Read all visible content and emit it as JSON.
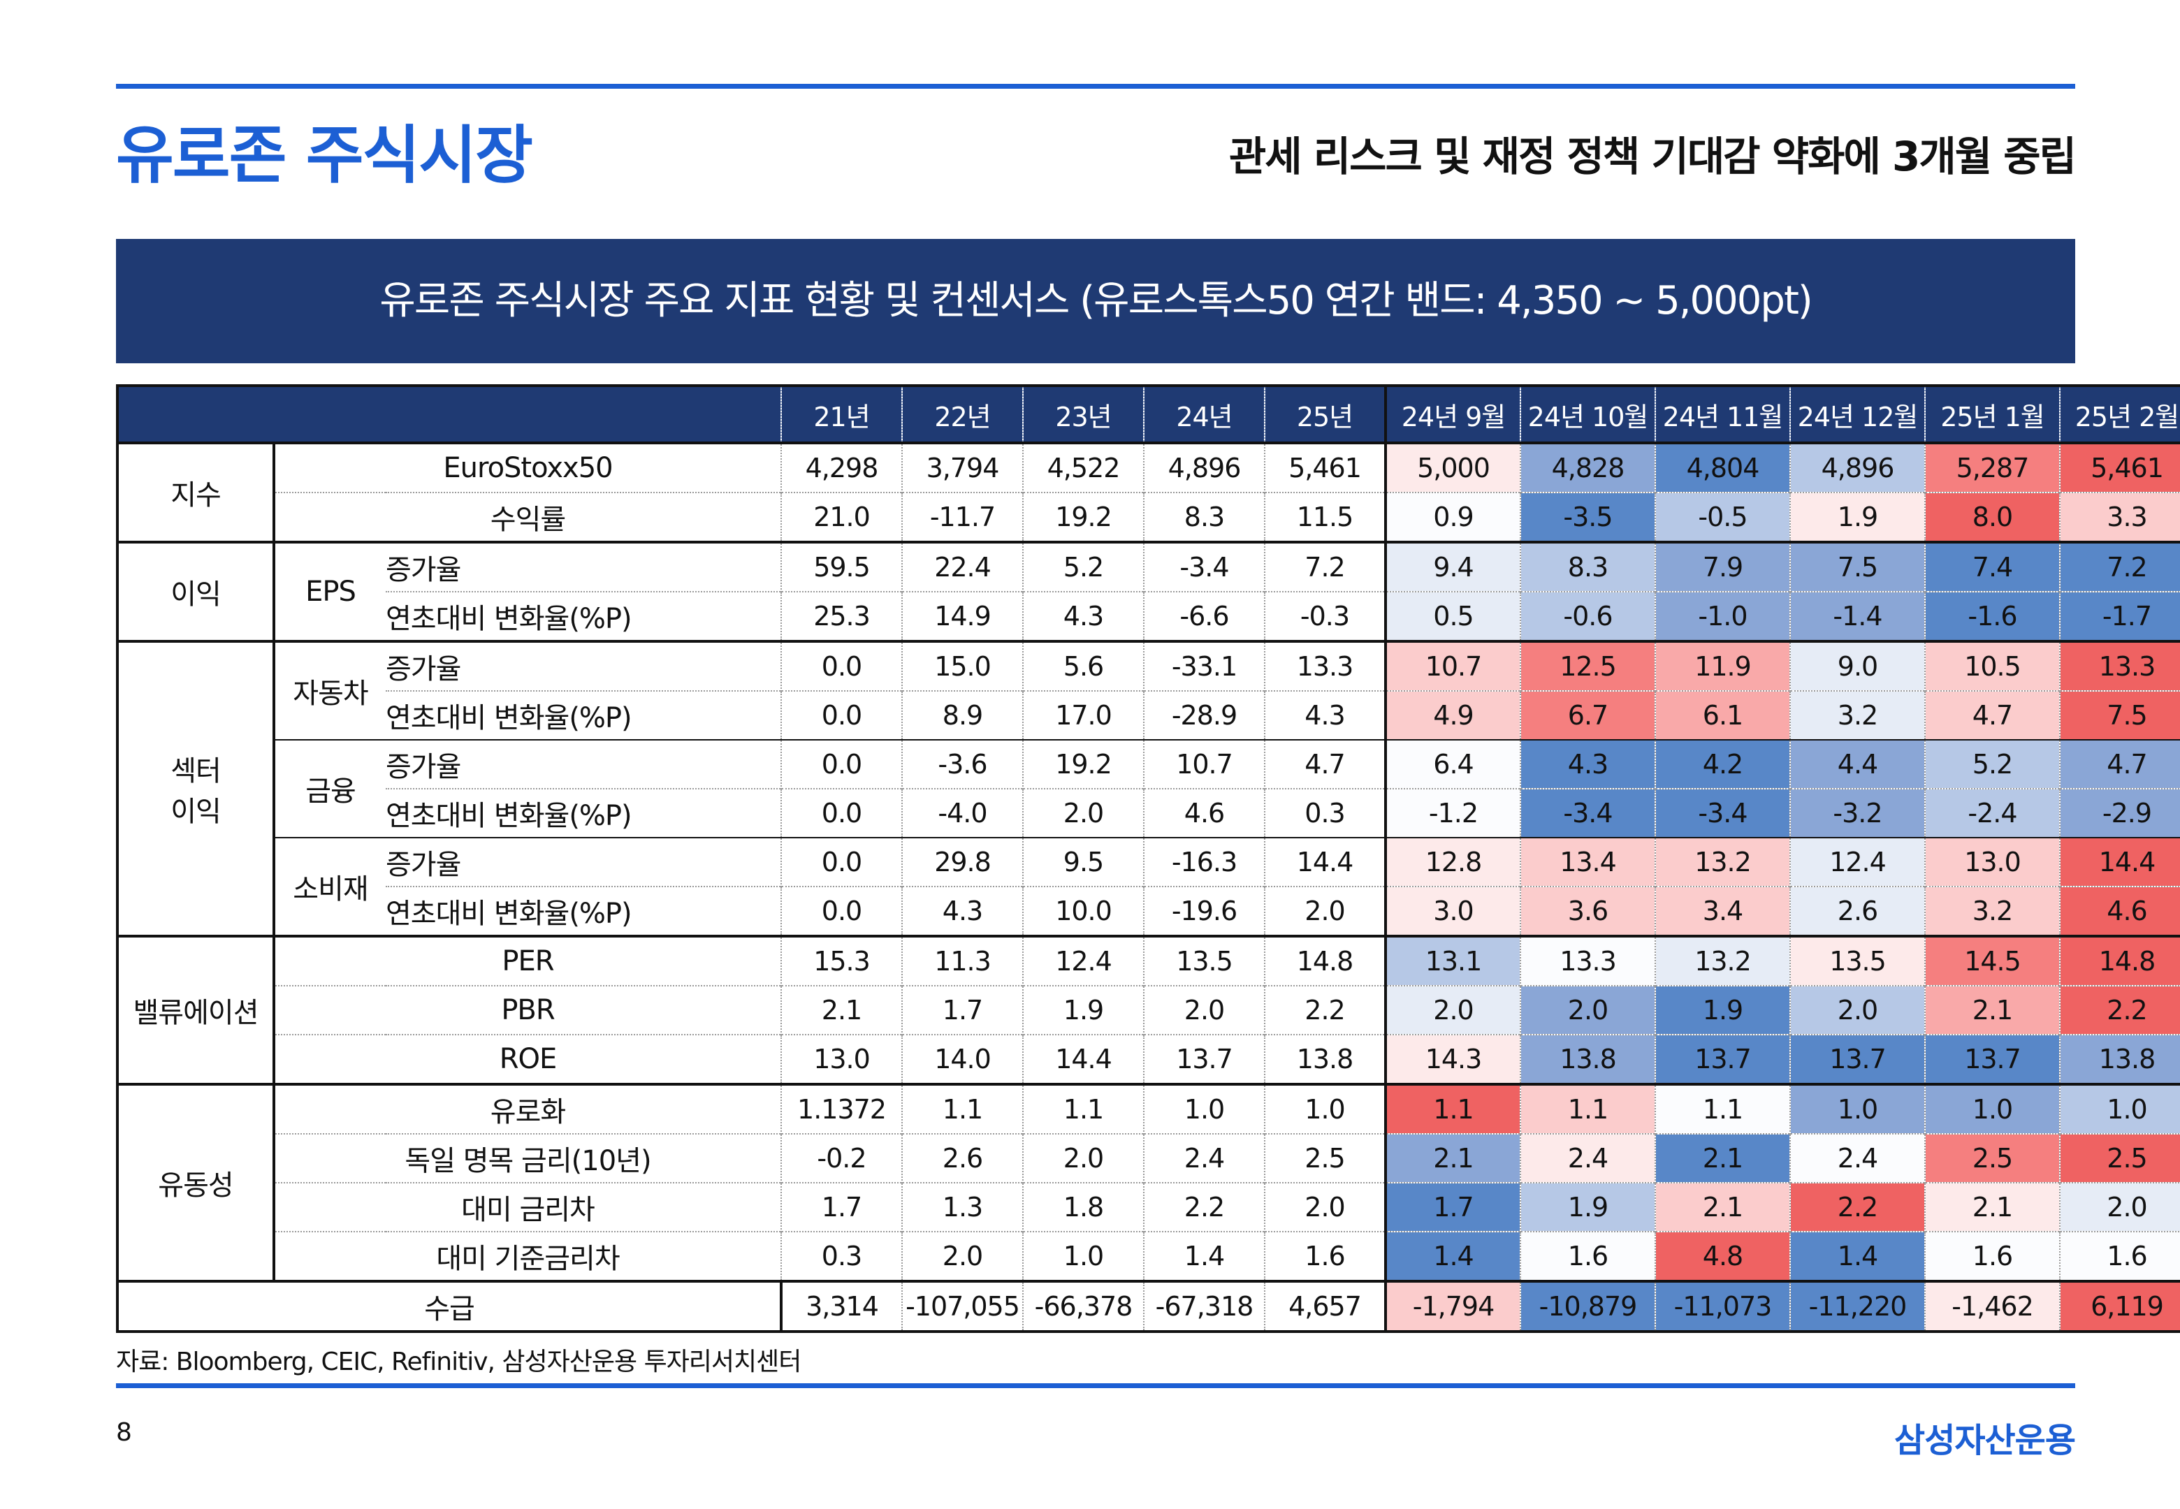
{
  "header": {
    "title": "유로존 주식시장",
    "subtitle": "관세 리스크 및 재정 정책 기대감 약화에 3개월 중립"
  },
  "banner": {
    "text": "유로존 주식시장 주요 지표 현황 및 컨센서스 (유로스톡스50 연간 밴드: 4,350 ~ 5,000pt)"
  },
  "table": {
    "columns": [
      "21년",
      "22년",
      "23년",
      "24년",
      "25년",
      "24년 9월",
      "24년 10월",
      "24년 11월",
      "24년 12월",
      "25년 1월",
      "25년 2월"
    ],
    "categories": {
      "index": "지수",
      "profit": "이익",
      "sector_line1": "섹터",
      "sector_line2": "이익",
      "valuation": "밸류에이션",
      "liquidity": "유동성",
      "flows": "수급"
    },
    "subcats": {
      "eps": "EPS",
      "auto": "자동차",
      "finance": "금융",
      "consumer": "소비재"
    },
    "rows": [
      {
        "metric": "EuroStoxx50",
        "values": [
          "4,298",
          "3,794",
          "4,522",
          "4,896",
          "5,461",
          "5,000",
          "4,828",
          "4,804",
          "4,896",
          "5,287",
          "5,461"
        ]
      },
      {
        "metric": "수익률",
        "values": [
          "21.0",
          "-11.7",
          "19.2",
          "8.3",
          "11.5",
          "0.9",
          "-3.5",
          "-0.5",
          "1.9",
          "8.0",
          "3.3"
        ]
      },
      {
        "metric": "증가율",
        "values": [
          "59.5",
          "22.4",
          "5.2",
          "-3.4",
          "7.2",
          "9.4",
          "8.3",
          "7.9",
          "7.5",
          "7.4",
          "7.2"
        ]
      },
      {
        "metric": "연초대비 변화율(%P)",
        "values": [
          "25.3",
          "14.9",
          "4.3",
          "-6.6",
          "-0.3",
          "0.5",
          "-0.6",
          "-1.0",
          "-1.4",
          "-1.6",
          "-1.7"
        ]
      },
      {
        "metric": "증가율",
        "values": [
          "0.0",
          "15.0",
          "5.6",
          "-33.1",
          "13.3",
          "10.7",
          "12.5",
          "11.9",
          "9.0",
          "10.5",
          "13.3"
        ]
      },
      {
        "metric": "연초대비 변화율(%P)",
        "values": [
          "0.0",
          "8.9",
          "17.0",
          "-28.9",
          "4.3",
          "4.9",
          "6.7",
          "6.1",
          "3.2",
          "4.7",
          "7.5"
        ]
      },
      {
        "metric": "증가율",
        "values": [
          "0.0",
          "-3.6",
          "19.2",
          "10.7",
          "4.7",
          "6.4",
          "4.3",
          "4.2",
          "4.4",
          "5.2",
          "4.7"
        ]
      },
      {
        "metric": "연초대비 변화율(%P)",
        "values": [
          "0.0",
          "-4.0",
          "2.0",
          "4.6",
          "0.3",
          "-1.2",
          "-3.4",
          "-3.4",
          "-3.2",
          "-2.4",
          "-2.9"
        ]
      },
      {
        "metric": "증가율",
        "values": [
          "0.0",
          "29.8",
          "9.5",
          "-16.3",
          "14.4",
          "12.8",
          "13.4",
          "13.2",
          "12.4",
          "13.0",
          "14.4"
        ]
      },
      {
        "metric": "연초대비 변화율(%P)",
        "values": [
          "0.0",
          "4.3",
          "10.0",
          "-19.6",
          "2.0",
          "3.0",
          "3.6",
          "3.4",
          "2.6",
          "3.2",
          "4.6"
        ]
      },
      {
        "metric": "PER",
        "values": [
          "15.3",
          "11.3",
          "12.4",
          "13.5",
          "14.8",
          "13.1",
          "13.3",
          "13.2",
          "13.5",
          "14.5",
          "14.8"
        ]
      },
      {
        "metric": "PBR",
        "values": [
          "2.1",
          "1.7",
          "1.9",
          "2.0",
          "2.2",
          "2.0",
          "2.0",
          "1.9",
          "2.0",
          "2.1",
          "2.2"
        ]
      },
      {
        "metric": "ROE",
        "values": [
          "13.0",
          "14.0",
          "14.4",
          "13.7",
          "13.8",
          "14.3",
          "13.8",
          "13.7",
          "13.7",
          "13.7",
          "13.8"
        ]
      },
      {
        "metric": "유로화",
        "values": [
          "1.1372",
          "1.1",
          "1.1",
          "1.0",
          "1.0",
          "1.1",
          "1.1",
          "1.1",
          "1.0",
          "1.0",
          "1.0"
        ]
      },
      {
        "metric": "독일 명목 금리(10년)",
        "values": [
          "-0.2",
          "2.6",
          "2.0",
          "2.4",
          "2.5",
          "2.1",
          "2.4",
          "2.1",
          "2.4",
          "2.5",
          "2.5"
        ]
      },
      {
        "metric": "대미 금리차",
        "values": [
          "1.7",
          "1.3",
          "1.8",
          "2.2",
          "2.0",
          "1.7",
          "1.9",
          "2.1",
          "2.2",
          "2.1",
          "2.0"
        ]
      },
      {
        "metric": "대미 기준금리차",
        "values": [
          "0.3",
          "2.0",
          "1.0",
          "1.4",
          "1.6",
          "1.4",
          "1.6",
          "4.8",
          "1.4",
          "1.6",
          "1.6"
        ]
      },
      {
        "metric": "",
        "values": [
          "3,314",
          "-107,055",
          "-66,378",
          "-67,318",
          "4,657",
          "-1,794",
          "-10,879",
          "-11,073",
          "-11,220",
          "-1,462",
          "6,119"
        ]
      }
    ],
    "heat_classes": [
      [
        "r1",
        "c4",
        "c5",
        "c3",
        "r4",
        "r5"
      ],
      [
        "c1",
        "c5",
        "c3",
        "r1",
        "r5",
        "r2"
      ],
      [
        "c2",
        "c3",
        "c4",
        "c4",
        "c5",
        "c5"
      ],
      [
        "c2",
        "c3",
        "c4",
        "c4",
        "c5",
        "c5"
      ],
      [
        "r2",
        "r4",
        "r3",
        "c2",
        "r2",
        "r5"
      ],
      [
        "r2",
        "r4",
        "r3",
        "c2",
        "r2",
        "r5"
      ],
      [
        "c1",
        "c5",
        "c5",
        "c4",
        "c3",
        "c4"
      ],
      [
        "c1",
        "c5",
        "c5",
        "c4",
        "c3",
        "c4"
      ],
      [
        "r1",
        "r2",
        "r2",
        "c2",
        "r2",
        "r5"
      ],
      [
        "r1",
        "r2",
        "r2",
        "c2",
        "r2",
        "r5"
      ],
      [
        "c3",
        "c1",
        "c2",
        "r1",
        "r4",
        "r5"
      ],
      [
        "c2",
        "c4",
        "c5",
        "c3",
        "r3",
        "r5"
      ],
      [
        "r1",
        "c4",
        "c5",
        "c5",
        "c5",
        "c4"
      ],
      [
        "r5",
        "r2",
        "c1",
        "c4",
        "c4",
        "c3"
      ],
      [
        "c4",
        "r1",
        "c5",
        "c1",
        "r4",
        "r5"
      ],
      [
        "c5",
        "c3",
        "r2",
        "r5",
        "r1",
        "c2"
      ],
      [
        "c5",
        "c1",
        "r5",
        "c5",
        "c1",
        "c1"
      ],
      [
        "r2",
        "c5",
        "c5",
        "c5",
        "r1",
        "r5"
      ]
    ]
  },
  "footer": {
    "source": "자료: Bloomberg, CEIC, Refinitiv, 삼성자산운용 투자리서치센터",
    "page": "8",
    "brand": "삼성자산운용"
  }
}
